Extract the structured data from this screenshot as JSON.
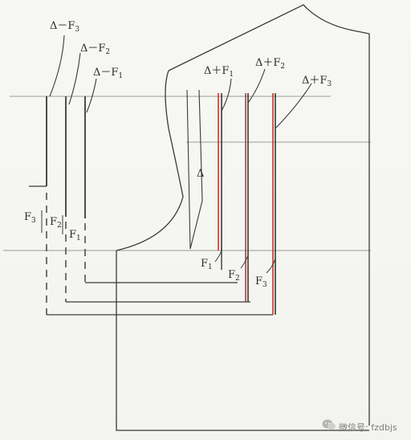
{
  "labels": {
    "left_top": [
      {
        "base": "Δ－F",
        "sub": "3"
      },
      {
        "base": "Δ－F",
        "sub": "2"
      },
      {
        "base": "Δ－F",
        "sub": "1"
      }
    ],
    "right_top": [
      {
        "base": "Δ＋F",
        "sub": "1"
      },
      {
        "base": "Δ＋F",
        "sub": "2"
      },
      {
        "base": "Δ＋F",
        "sub": "3"
      }
    ],
    "delta": "Δ",
    "left_mid": [
      {
        "base": "F",
        "sub": "3"
      },
      {
        "base": "F",
        "sub": "2"
      },
      {
        "base": "F",
        "sub": "1"
      }
    ],
    "right_bottom": [
      {
        "base": "F",
        "sub": "1"
      },
      {
        "base": "F",
        "sub": "2"
      },
      {
        "base": "F",
        "sub": "3"
      }
    ]
  },
  "watermark": {
    "text": "微信号: fzdbjs",
    "icon": "wechat-icon"
  },
  "colors": {
    "line": "#3a3a3a",
    "guide": "#9a9a9a",
    "accent": "#c0392b"
  }
}
